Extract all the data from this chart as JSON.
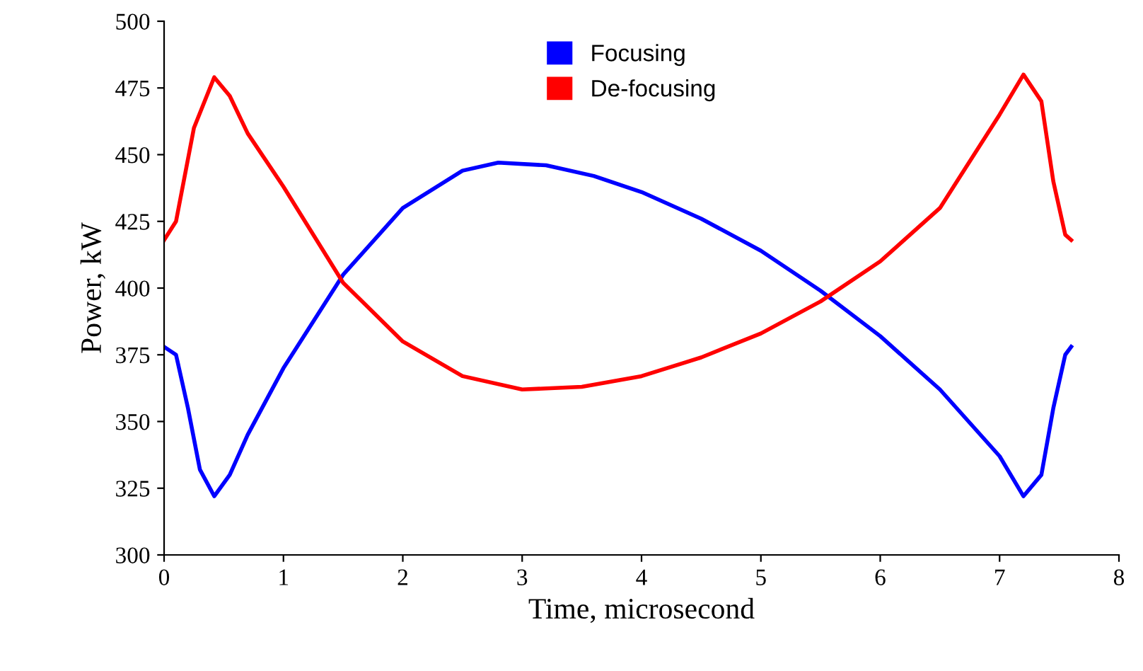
{
  "chart_data": {
    "type": "line",
    "xlabel": "Time, microsecond",
    "ylabel": "Power, kW",
    "xlim": [
      0,
      8
    ],
    "xticks": [
      0,
      1,
      2,
      3,
      4,
      5,
      6,
      7,
      8
    ],
    "ylim": [
      300,
      500
    ],
    "yticks": [
      300,
      325,
      350,
      375,
      400,
      425,
      450,
      475,
      500
    ],
    "grid": false,
    "legend": "top",
    "line_style": "solid",
    "marker": "none",
    "series": [
      {
        "name": "Focusing",
        "color": "#0000ff",
        "x": [
          0,
          0.1,
          0.2,
          0.3,
          0.42,
          0.55,
          0.7,
          1.0,
          1.5,
          2.0,
          2.5,
          2.8,
          3.2,
          3.6,
          4.0,
          4.5,
          5.0,
          5.5,
          6.0,
          6.5,
          7.0,
          7.2,
          7.35,
          7.45,
          7.55,
          7.6
        ],
        "values": [
          378,
          375,
          355,
          332,
          322,
          330,
          345,
          370,
          405,
          430,
          444,
          447,
          446,
          442,
          436,
          426,
          414,
          399,
          382,
          362,
          337,
          322,
          330,
          355,
          375,
          378
        ]
      },
      {
        "name": "De-focusing",
        "color": "#ff0000",
        "x": [
          0,
          0.1,
          0.25,
          0.42,
          0.55,
          0.7,
          1.0,
          1.5,
          2.0,
          2.5,
          3.0,
          3.5,
          4.0,
          4.5,
          5.0,
          5.5,
          6.0,
          6.5,
          7.0,
          7.2,
          7.35,
          7.45,
          7.55,
          7.6
        ],
        "values": [
          418,
          425,
          460,
          479,
          472,
          458,
          438,
          402,
          380,
          367,
          362,
          363,
          367,
          374,
          383,
          395,
          410,
          430,
          465,
          480,
          470,
          440,
          420,
          418
        ]
      }
    ]
  }
}
